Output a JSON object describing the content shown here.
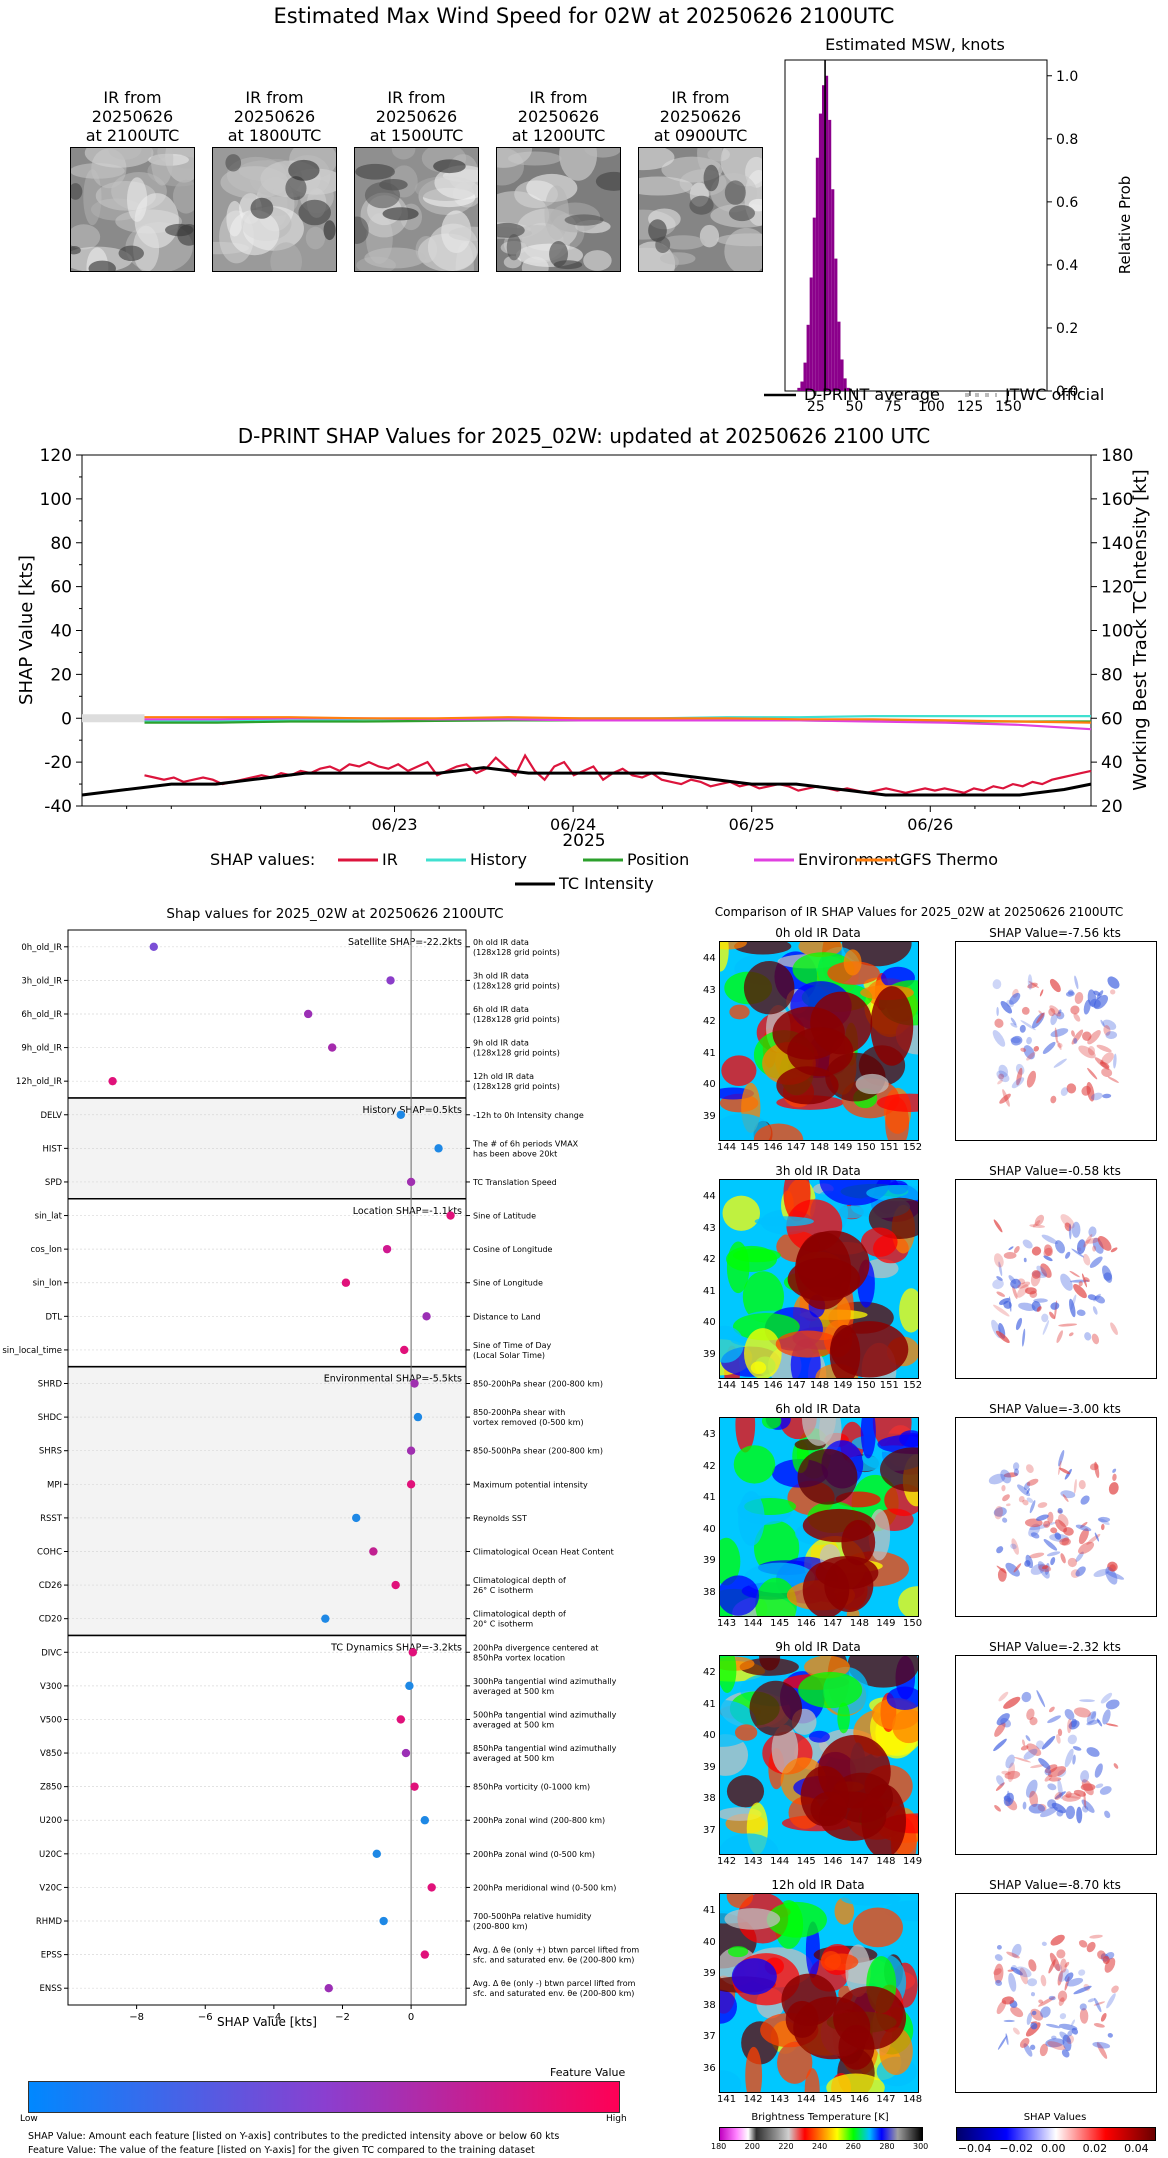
{
  "header": {
    "title": "Estimated Max Wind Speed for 02W at 20250626 2100UTC"
  },
  "ir_thumbnails": [
    {
      "label1": "IR from",
      "label2": "20250626",
      "label3": "at 2100UTC",
      "tone": "#8a8a8a"
    },
    {
      "label1": "IR from",
      "label2": "20250626",
      "label3": "at 1800UTC",
      "tone": "#9a9a9a"
    },
    {
      "label1": "IR from",
      "label2": "20250626",
      "label3": "at 1500UTC",
      "tone": "#8f8f8f"
    },
    {
      "label1": "IR from",
      "label2": "20250626",
      "label3": "at 1200UTC",
      "tone": "#7d7d7d"
    },
    {
      "label1": "IR from",
      "label2": "20250626",
      "label3": "at 0900UTC",
      "tone": "#858585"
    }
  ],
  "chart_data": [
    {
      "id": "msw_hist",
      "type": "bar",
      "title": "Estimated MSW, knots",
      "ylabel": "Relative Prob",
      "xlim": [
        5,
        175
      ],
      "ylim": [
        0,
        1.05
      ],
      "xticks": [
        25,
        50,
        75,
        100,
        125,
        150
      ],
      "yticks": [
        0.0,
        0.2,
        0.4,
        0.6,
        0.8,
        1.0
      ],
      "bar_width": 2,
      "bars": [
        [
          14,
          0.01
        ],
        [
          16,
          0.03
        ],
        [
          18,
          0.09
        ],
        [
          20,
          0.21
        ],
        [
          22,
          0.36
        ],
        [
          24,
          0.55
        ],
        [
          26,
          0.74
        ],
        [
          28,
          0.88
        ],
        [
          30,
          0.97
        ],
        [
          32,
          1.0
        ],
        [
          34,
          0.86
        ],
        [
          36,
          0.64
        ],
        [
          38,
          0.42
        ],
        [
          40,
          0.22
        ],
        [
          42,
          0.1
        ],
        [
          44,
          0.04
        ],
        [
          46,
          0.01
        ]
      ],
      "dprint_average": 31,
      "bar_color": "#8b008b",
      "legend": [
        {
          "label": "D-PRINT average",
          "style": "solid",
          "color": "#000000"
        },
        {
          "label": "JTWC official",
          "style": "dotted",
          "color": "#bbbbbb"
        }
      ]
    },
    {
      "id": "shap_timeseries",
      "type": "line",
      "title": "D-PRINT SHAP Values for 2025_02W: updated at 20250626 2100 UTC",
      "ylabel": "SHAP Value [kts]",
      "ylabel_right": "Working Best Track TC Intensity [kt]",
      "xlabel": "2025",
      "ylim": [
        -40,
        120
      ],
      "ylim_right": [
        20,
        180
      ],
      "yticks": [
        -40,
        -20,
        0,
        20,
        40,
        60,
        80,
        100,
        120
      ],
      "yticks_right": [
        20,
        40,
        60,
        80,
        100,
        120,
        140,
        160,
        180
      ],
      "x_tick_labels": [
        "06/23",
        "06/24",
        "06/25",
        "06/26"
      ],
      "x_tick_days": [
        1,
        2,
        3,
        4
      ],
      "x_range_days": [
        -0.75,
        4.9
      ],
      "legend_prefix": "SHAP values:",
      "series": [
        {
          "name": "IR",
          "color": "#dc143c",
          "start": -0.4,
          "end": 4.9,
          "points": [
            -26,
            -27,
            -28,
            -27,
            -29,
            -28,
            -27,
            -28,
            -30,
            -29,
            -28,
            -27,
            -26,
            -27,
            -25,
            -26,
            -24,
            -25,
            -23,
            -22,
            -24,
            -21,
            -22,
            -20,
            -22,
            -23,
            -21,
            -24,
            -22,
            -20,
            -26,
            -24,
            -22,
            -21,
            -25,
            -23,
            -18,
            -22,
            -26,
            -17,
            -24,
            -28,
            -22,
            -20,
            -26,
            -24,
            -22,
            -28,
            -25,
            -23,
            -26,
            -27,
            -25,
            -28,
            -29,
            -30,
            -28,
            -29,
            -31,
            -30,
            -29,
            -31,
            -30,
            -32,
            -31,
            -30,
            -31,
            -33,
            -32,
            -31,
            -32,
            -33,
            -32,
            -33,
            -34,
            -33,
            -32,
            -33,
            -34,
            -33,
            -32,
            -33,
            -32,
            -33,
            -34,
            -32,
            -33,
            -31,
            -32,
            -30,
            -31,
            -29,
            -30,
            -28,
            -27,
            -26,
            -25,
            -24
          ]
        },
        {
          "name": "History",
          "color": "#40e0d0",
          "start": -0.4,
          "end": 4.9,
          "points": [
            -1,
            -1,
            -1,
            -0.5,
            -0.5,
            0,
            0,
            0,
            0.5,
            0.5,
            1,
            1,
            1,
            1
          ]
        },
        {
          "name": "Position",
          "color": "#2ca02c",
          "start": -0.4,
          "end": 4.9,
          "points": [
            -2,
            -2,
            -1.5,
            -1.5,
            -1.2,
            -1,
            -1,
            -1,
            -1,
            -1,
            -1.2,
            -1.5,
            -1.5,
            -1.5
          ]
        },
        {
          "name": "Environment",
          "color": "#e040e0",
          "start": -0.4,
          "end": 4.9,
          "points": [
            -0.5,
            -0.5,
            0,
            0,
            -0.5,
            -0.5,
            -1,
            -1,
            -1,
            -1,
            -1.5,
            -2,
            -3,
            -5
          ]
        },
        {
          "name": "GFS Thermo",
          "color": "#ff7f0e",
          "start": -0.4,
          "end": 4.9,
          "points": [
            0.5,
            0.5,
            0.5,
            0,
            0,
            0.5,
            0,
            0,
            0,
            -0.5,
            -0.5,
            -1,
            -1.5,
            -2
          ]
        },
        {
          "name": "TC Intensity",
          "color": "#000000",
          "axis": "right",
          "points": [
            [
              -0.75,
              25
            ],
            [
              -0.5,
              27.5
            ],
            [
              -0.25,
              30
            ],
            [
              0.0,
              30
            ],
            [
              0.25,
              32.5
            ],
            [
              0.5,
              35
            ],
            [
              0.75,
              35
            ],
            [
              1.0,
              35
            ],
            [
              1.25,
              35
            ],
            [
              1.5,
              37.5
            ],
            [
              1.75,
              35
            ],
            [
              2.0,
              35
            ],
            [
              2.25,
              35
            ],
            [
              2.5,
              35
            ],
            [
              2.75,
              32.5
            ],
            [
              3.0,
              30
            ],
            [
              3.25,
              30
            ],
            [
              3.5,
              27.5
            ],
            [
              3.75,
              25
            ],
            [
              4.0,
              25
            ],
            [
              4.25,
              25
            ],
            [
              4.5,
              25
            ],
            [
              4.75,
              27.5
            ],
            [
              4.9,
              30
            ]
          ]
        }
      ],
      "grey_band": {
        "from": -0.75,
        "to": -0.4,
        "color": "#dddddd"
      }
    },
    {
      "id": "shap_features",
      "type": "scatter",
      "title": "Shap values for 2025_02W at 20250626 2100UTC",
      "xlabel": "SHAP Value [kts]",
      "xlim": [
        -10,
        1.6
      ],
      "xticks": [
        -8,
        -6,
        -4,
        -2,
        0
      ],
      "groups": [
        {
          "name": "Satellite SHAP=-22.2kts",
          "shaded": false,
          "features": [
            {
              "label": "0h_old_IR",
              "value": -7.5,
              "color": "#7b4fd6",
              "desc1": "0h old IR data",
              "desc2": "(128x128 grid points)"
            },
            {
              "label": "3h_old_IR",
              "value": -0.6,
              "color": "#8b3dc9",
              "desc1": "3h old IR data",
              "desc2": "(128x128 grid points)"
            },
            {
              "label": "6h_old_IR",
              "value": -3.0,
              "color": "#9b2fb5",
              "desc1": "6h old IR data",
              "desc2": "(128x128 grid points)"
            },
            {
              "label": "9h_old_IR",
              "value": -2.3,
              "color": "#a42aad",
              "desc1": "9h old IR data",
              "desc2": "(128x128 grid points)"
            },
            {
              "label": "12h_old_IR",
              "value": -8.7,
              "color": "#e0117a",
              "desc1": "12h old IR data",
              "desc2": "(128x128 grid points)"
            }
          ]
        },
        {
          "name": "History SHAP=0.5kts",
          "shaded": true,
          "features": [
            {
              "label": "DELV",
              "value": -0.3,
              "color": "#1e88e5",
              "desc1": "-12h to 0h Intensity change",
              "desc2": ""
            },
            {
              "label": "HIST",
              "value": 0.8,
              "color": "#1e88e5",
              "desc1": "The # of 6h periods VMAX",
              "desc2": "has been above 20kt"
            },
            {
              "label": "SPD",
              "value": 0.0,
              "color": "#a030b0",
              "desc1": "TC Translation Speed",
              "desc2": ""
            }
          ]
        },
        {
          "name": "Location SHAP=-1.1kts",
          "shaded": false,
          "features": [
            {
              "label": "sin_lat",
              "value": 1.15,
              "color": "#e0117a",
              "desc1": "Sine of Latitude",
              "desc2": ""
            },
            {
              "label": "cos_lon",
              "value": -0.7,
              "color": "#d01890",
              "desc1": "Cosine of Longitude",
              "desc2": ""
            },
            {
              "label": "sin_lon",
              "value": -1.9,
              "color": "#e0117a",
              "desc1": "Sine of Longitude",
              "desc2": ""
            },
            {
              "label": "DTL",
              "value": 0.45,
              "color": "#9b2fb5",
              "desc1": "Distance to Land",
              "desc2": ""
            },
            {
              "label": "sin_local_time",
              "value": -0.2,
              "color": "#e0117a",
              "desc1": "Sine of Time of Day",
              "desc2": "(Local Solar Time)"
            }
          ]
        },
        {
          "name": "Environmental SHAP=-5.5kts",
          "shaded": true,
          "features": [
            {
              "label": "SHRD",
              "value": 0.1,
              "color": "#a030b0",
              "desc1": "850-200hPa shear (200-800 km)",
              "desc2": ""
            },
            {
              "label": "SHDC",
              "value": 0.2,
              "color": "#1e88e5",
              "desc1": "850-200hPa shear with",
              "desc2": "vortex removed (0-500 km)"
            },
            {
              "label": "SHRS",
              "value": 0.0,
              "color": "#a030b0",
              "desc1": "850-500hPa shear (200-800 km)",
              "desc2": ""
            },
            {
              "label": "MPI",
              "value": 0.0,
              "color": "#e0117a",
              "desc1": "Maximum potential intensity",
              "desc2": ""
            },
            {
              "label": "RSST",
              "value": -1.6,
              "color": "#1e88e5",
              "desc1": "Reynolds SST",
              "desc2": ""
            },
            {
              "label": "COHC",
              "value": -1.1,
              "color": "#c02090",
              "desc1": "Climatological Ocean Heat Content",
              "desc2": ""
            },
            {
              "label": "CD26",
              "value": -0.45,
              "color": "#e0117a",
              "desc1": "Climatological depth of",
              "desc2": "26° C isotherm"
            },
            {
              "label": "CD20",
              "value": -2.5,
              "color": "#1e88e5",
              "desc1": "Climatological depth of",
              "desc2": "20° C isotherm"
            }
          ]
        },
        {
          "name": "TC Dynamics SHAP=-3.2kts",
          "shaded": false,
          "features": [
            {
              "label": "DIVC",
              "value": 0.05,
              "color": "#e0117a",
              "desc1": "200hPa divergence centered at",
              "desc2": "850hPa vortex location"
            },
            {
              "label": "V300",
              "value": -0.05,
              "color": "#1e88e5",
              "desc1": "300hPa tangential wind azimuthally",
              "desc2": "averaged at 500 km"
            },
            {
              "label": "V500",
              "value": -0.3,
              "color": "#e0117a",
              "desc1": "500hPa tangential wind azimuthally",
              "desc2": "averaged at 500 km"
            },
            {
              "label": "V850",
              "value": -0.15,
              "color": "#9b2fb5",
              "desc1": "850hPa tangential wind azimuthally",
              "desc2": "averaged at 500 km"
            },
            {
              "label": "Z850",
              "value": 0.1,
              "color": "#e0117a",
              "desc1": "850hPa vorticity (0-1000 km)",
              "desc2": ""
            },
            {
              "label": "U200",
              "value": 0.4,
              "color": "#1e88e5",
              "desc1": "200hPa zonal wind (200-800 km)",
              "desc2": ""
            },
            {
              "label": "U20C",
              "value": -1.0,
              "color": "#1e88e5",
              "desc1": "200hPa zonal wind (0-500 km)",
              "desc2": ""
            },
            {
              "label": "V20C",
              "value": 0.6,
              "color": "#e0117a",
              "desc1": "200hPa meridional wind (0-500 km)",
              "desc2": ""
            },
            {
              "label": "RHMD",
              "value": -0.8,
              "color": "#1e88e5",
              "desc1": "700-500hPa relative humidity",
              "desc2": "(200-800 km)"
            },
            {
              "label": "EPSS",
              "value": 0.4,
              "color": "#e0117a",
              "desc1": "Avg. Δ θe (only +) btwn parcel lifted from",
              "desc2": "sfc. and saturated env. θe (200-800 km)"
            },
            {
              "label": "ENSS",
              "value": -2.4,
              "color": "#9b2fb5",
              "desc1": "Avg. Δ θe (only -) btwn parcel lifted from",
              "desc2": "sfc. and saturated env. θe (200-800 km)"
            }
          ]
        }
      ]
    }
  ],
  "feature_colorbar": {
    "title": "Feature Value",
    "low": "Low",
    "high": "High",
    "color_low": "#0088ff",
    "color_mid": "#8a3fd0",
    "color_high": "#ff0055"
  },
  "notes": {
    "line1": "SHAP Value: Amount each feature [listed on Y-axis] contributes to the predicted intensity above or below 60 kts",
    "line2": "Feature Value: The value of the feature [listed on Y-axis] for the given TC compared to the training dataset"
  },
  "comparison": {
    "title": "Comparison of IR SHAP Values for 2025_02W at 20250626 2100UTC",
    "rows": [
      {
        "ir_title": "0h old IR Data",
        "shap_title": "SHAP Value=-7.56 kts",
        "yticks": [
          "44",
          "43",
          "42",
          "41",
          "40",
          "39"
        ],
        "xticks": [
          "144",
          "145",
          "146",
          "147",
          "148",
          "149",
          "150",
          "151",
          "152"
        ]
      },
      {
        "ir_title": "3h old IR Data",
        "shap_title": "SHAP Value=-0.58 kts",
        "yticks": [
          "44",
          "43",
          "42",
          "41",
          "40",
          "39"
        ],
        "xticks": [
          "144",
          "145",
          "146",
          "147",
          "148",
          "149",
          "150",
          "151",
          "152"
        ]
      },
      {
        "ir_title": "6h old IR Data",
        "shap_title": "SHAP Value=-3.00 kts",
        "yticks": [
          "43",
          "42",
          "41",
          "40",
          "39",
          "38"
        ],
        "xticks": [
          "143",
          "144",
          "145",
          "146",
          "147",
          "148",
          "149",
          "150"
        ]
      },
      {
        "ir_title": "9h old IR Data",
        "shap_title": "SHAP Value=-2.32 kts",
        "yticks": [
          "42",
          "41",
          "40",
          "39",
          "38",
          "37"
        ],
        "xticks": [
          "142",
          "143",
          "144",
          "145",
          "146",
          "147",
          "148",
          "149"
        ]
      },
      {
        "ir_title": "12h old IR Data",
        "shap_title": "SHAP Value=-8.70 kts",
        "yticks": [
          "41",
          "40",
          "39",
          "38",
          "37",
          "36"
        ],
        "xticks": [
          "141",
          "142",
          "143",
          "144",
          "145",
          "146",
          "147",
          "148"
        ]
      }
    ],
    "bt_colorbar": {
      "title": "Brightness Temperature [K]",
      "ticks": [
        "180",
        "200",
        "220",
        "240",
        "260",
        "280",
        "300"
      ]
    },
    "shap_colorbar": {
      "title": "SHAP Values",
      "ticks": [
        "−0.04",
        "−0.02",
        "0.00",
        "0.02",
        "0.04"
      ]
    }
  }
}
